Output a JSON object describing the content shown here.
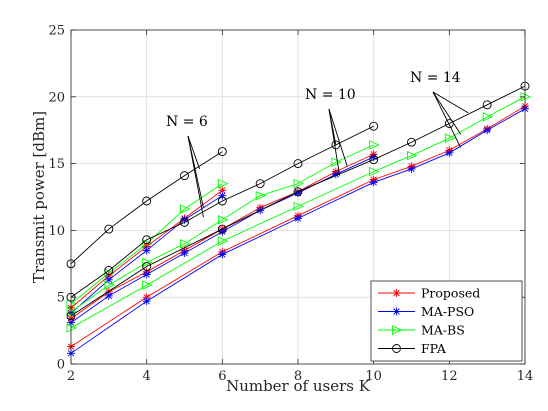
{
  "chart_data": {
    "type": "line",
    "xlabel": "Number of users K",
    "ylabel": "Transmit power [dBm]",
    "xlim": [
      2,
      14
    ],
    "ylim": [
      0,
      25
    ],
    "xticks": [
      2,
      4,
      6,
      8,
      10,
      12,
      14
    ],
    "yticks": [
      0,
      5,
      10,
      15,
      20,
      25
    ],
    "grid": true,
    "legend_position": "bottom-right",
    "legend": [
      {
        "label": "Proposed",
        "color": "#ff0000",
        "marker": "asterisk"
      },
      {
        "label": "MA-PSO",
        "color": "#0000ff",
        "marker": "asterisk"
      },
      {
        "label": "MA-BS",
        "color": "#00ff00",
        "marker": "triangle-right"
      },
      {
        "label": "FPA",
        "color": "#000000",
        "marker": "circle"
      }
    ],
    "annotations": [
      {
        "label": "N = 6"
      },
      {
        "label": "N = 10"
      },
      {
        "label": "N = 14"
      }
    ],
    "series": [
      {
        "method": "FPA",
        "N": 6,
        "color": "#000000",
        "marker": "circle",
        "x": [
          2,
          3,
          4,
          5,
          6
        ],
        "y": [
          7.5,
          10.1,
          12.2,
          14.1,
          15.9
        ]
      },
      {
        "method": "MA-BS",
        "N": 6,
        "color": "#00ff00",
        "marker": "triangle-right",
        "x": [
          2,
          3,
          4,
          5,
          6
        ],
        "y": [
          4.5,
          6.8,
          9.0,
          11.6,
          13.5
        ]
      },
      {
        "method": "Proposed",
        "N": 6,
        "color": "#ff0000",
        "marker": "asterisk",
        "x": [
          2,
          3,
          4,
          5,
          6
        ],
        "y": [
          4.2,
          6.6,
          8.8,
          10.9,
          13.0
        ]
      },
      {
        "method": "MA-PSO",
        "N": 6,
        "color": "#0000ff",
        "marker": "asterisk",
        "x": [
          2,
          3,
          4,
          5,
          6
        ],
        "y": [
          3.8,
          6.3,
          8.5,
          10.8,
          12.6
        ]
      },
      {
        "method": "FPA",
        "N": 10,
        "color": "#000000",
        "marker": "circle",
        "x": [
          2,
          3,
          4,
          5,
          6,
          7,
          8,
          9,
          10
        ],
        "y": [
          5.0,
          7.0,
          9.3,
          10.6,
          12.2,
          13.5,
          15.0,
          16.4,
          17.8
        ]
      },
      {
        "method": "MA-BS",
        "N": 10,
        "color": "#00ff00",
        "marker": "triangle-right",
        "x": [
          2,
          3,
          4,
          5,
          6,
          7,
          8,
          9,
          10
        ],
        "y": [
          3.9,
          5.9,
          7.6,
          9.0,
          10.8,
          12.6,
          13.5,
          15.1,
          16.4
        ]
      },
      {
        "method": "Proposed",
        "N": 10,
        "color": "#ff0000",
        "marker": "asterisk",
        "x": [
          2,
          3,
          4,
          5,
          6,
          7,
          8,
          9,
          10
        ],
        "y": [
          3.4,
          5.4,
          6.9,
          8.5,
          10.1,
          11.7,
          12.9,
          14.4,
          15.7
        ]
      },
      {
        "method": "MA-PSO",
        "N": 10,
        "color": "#0000ff",
        "marker": "asterisk",
        "x": [
          2,
          3,
          4,
          5,
          6,
          7,
          8,
          9,
          10
        ],
        "y": [
          3.1,
          5.1,
          6.7,
          8.3,
          9.9,
          11.5,
          12.8,
          14.2,
          15.5
        ]
      },
      {
        "method": "FPA",
        "N": 14,
        "color": "#000000",
        "marker": "circle",
        "x": [
          2,
          4,
          6,
          8,
          10,
          11,
          12,
          13,
          14
        ],
        "y": [
          3.6,
          7.3,
          10.1,
          12.9,
          15.3,
          16.6,
          18.0,
          19.4,
          20.8
        ]
      },
      {
        "method": "MA-BS",
        "N": 14,
        "color": "#00ff00",
        "marker": "triangle-right",
        "x": [
          2,
          4,
          6,
          8,
          10,
          11,
          12,
          13,
          14
        ],
        "y": [
          2.7,
          5.9,
          9.2,
          11.8,
          14.4,
          15.6,
          16.9,
          18.5,
          20.0
        ]
      },
      {
        "method": "Proposed",
        "N": 14,
        "color": "#ff0000",
        "marker": "asterisk",
        "x": [
          2,
          4,
          6,
          8,
          10,
          11,
          12,
          13,
          14
        ],
        "y": [
          1.3,
          5.0,
          8.4,
          11.1,
          13.8,
          14.8,
          16.0,
          17.6,
          19.3
        ]
      },
      {
        "method": "MA-PSO",
        "N": 14,
        "color": "#0000ff",
        "marker": "asterisk",
        "x": [
          2,
          4,
          6,
          8,
          10,
          11,
          12,
          13,
          14
        ],
        "y": [
          0.8,
          4.7,
          8.2,
          10.9,
          13.6,
          14.6,
          15.8,
          17.5,
          19.1
        ]
      }
    ]
  }
}
